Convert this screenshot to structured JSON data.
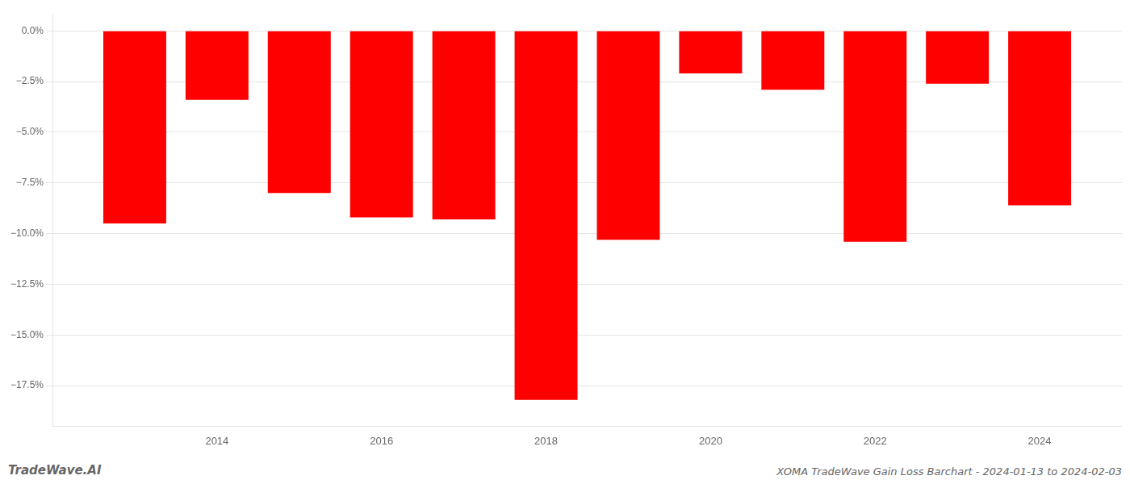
{
  "chart_data": {
    "type": "bar",
    "title": "XOMA TradeWave Gain Loss Barchart - 2024-01-13 to 2024-02-03",
    "annotations": [
      "TradeWave.AI"
    ],
    "x": [
      2013,
      2014,
      2015,
      2016,
      2017,
      2018,
      2019,
      2020,
      2021,
      2022,
      2023,
      2024
    ],
    "values": [
      -9.5,
      -3.4,
      -8.0,
      -9.2,
      -9.3,
      -18.2,
      -10.3,
      -2.1,
      -2.9,
      -10.4,
      -2.6,
      -8.6
    ],
    "color": "#ff0000",
    "xlim": [
      2012,
      2025
    ],
    "xticks": [
      2014,
      2016,
      2018,
      2020,
      2022,
      2024
    ],
    "ylim": [
      -19.5,
      0.8
    ],
    "yticks": [
      {
        "value": 0.0,
        "label": "0.0%"
      },
      {
        "value": -2.5,
        "label": "−2.5%"
      },
      {
        "value": -5.0,
        "label": "−5.0%"
      },
      {
        "value": -7.5,
        "label": "−7.5%"
      },
      {
        "value": -10.0,
        "label": "−10.0%"
      },
      {
        "value": -12.5,
        "label": "−12.5%"
      },
      {
        "value": -15.0,
        "label": "−15.0%"
      },
      {
        "value": -17.5,
        "label": "−17.5%"
      }
    ],
    "grid": true
  }
}
